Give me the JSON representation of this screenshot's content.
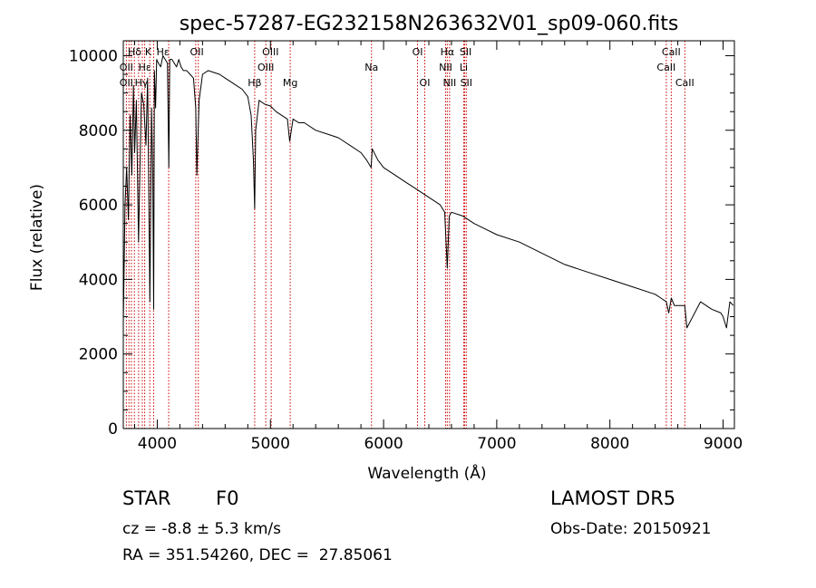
{
  "chart_data": {
    "type": "line",
    "title": "spec-57287-EG232158N263632V01_sp09-060.fits",
    "xlabel": "Wavelength (Å)",
    "ylabel": "Flux (relative)",
    "xlim": [
      3700,
      9100
    ],
    "ylim": [
      0,
      10400
    ],
    "xticks": [
      4000,
      5000,
      6000,
      7000,
      8000,
      9000
    ],
    "yticks": [
      0,
      2000,
      4000,
      6000,
      8000,
      10000
    ],
    "grid": false,
    "series": [
      {
        "x": [
          3700,
          3715,
          3730,
          3745,
          3760,
          3775,
          3790,
          3800,
          3815,
          3835,
          3860,
          3880,
          3900,
          3915,
          3935,
          3950,
          3960,
          3968,
          3975,
          3985,
          3995,
          4010,
          4030,
          4050,
          4070,
          4090,
          4102,
          4110,
          4130,
          4150,
          4170,
          4190,
          4210,
          4230,
          4260,
          4290,
          4320,
          4340,
          4350,
          4370,
          4400,
          4450,
          4500,
          4550,
          4600,
          4650,
          4700,
          4750,
          4800,
          4830,
          4850,
          4861,
          4870,
          4900,
          4950,
          5000,
          5050,
          5100,
          5150,
          5170,
          5200,
          5250,
          5300,
          5400,
          5500,
          5600,
          5700,
          5800,
          5850,
          5890,
          5900,
          5950,
          6000,
          6100,
          6200,
          6300,
          6400,
          6500,
          6540,
          6563,
          6580,
          6600,
          6700,
          6800,
          7000,
          7200,
          7400,
          7600,
          7800,
          8000,
          8200,
          8400,
          8450,
          8498,
          8520,
          8542,
          8570,
          8600,
          8662,
          8680,
          8800,
          8900,
          8980,
          9000,
          9030,
          9060,
          9090
        ],
        "y": [
          2800,
          6000,
          7000,
          5600,
          8400,
          6800,
          9200,
          7400,
          8800,
          5000,
          9000,
          8700,
          7600,
          9400,
          3400,
          8600,
          6800,
          3200,
          9600,
          8600,
          9900,
          9800,
          9700,
          10000,
          9900,
          9800,
          7000,
          9900,
          9900,
          9800,
          9700,
          9900,
          9700,
          9600,
          9600,
          9500,
          9400,
          8600,
          6800,
          8800,
          9500,
          9600,
          9550,
          9500,
          9400,
          9300,
          9200,
          9100,
          8900,
          8400,
          7200,
          5900,
          8000,
          8800,
          8700,
          8650,
          8500,
          8400,
          8300,
          7700,
          8300,
          8200,
          8200,
          8000,
          7900,
          7800,
          7600,
          7400,
          7200,
          7000,
          7500,
          7200,
          7000,
          6800,
          6600,
          6400,
          6200,
          6000,
          5800,
          4300,
          5700,
          5800,
          5700,
          5500,
          5200,
          5000,
          4700,
          4400,
          4200,
          4000,
          3800,
          3600,
          3500,
          3400,
          3100,
          3500,
          3300,
          3300,
          3300,
          2700,
          3400,
          3200,
          3100,
          3000,
          2700,
          3400,
          3300
        ]
      }
    ],
    "line_ids": {
      "row1": [
        {
          "label": "Hδ",
          "x": 3800
        },
        {
          "label": "K",
          "x": 3920
        },
        {
          "label": "Hε",
          "x": 4050
        },
        {
          "label": "OII",
          "x": 4350
        },
        {
          "label": "OIII",
          "x": 5000
        },
        {
          "label": "OI",
          "x": 6300
        },
        {
          "label": "Hα",
          "x": 6563
        },
        {
          "label": "SII",
          "x": 6725
        },
        {
          "label": "CaII",
          "x": 8542
        }
      ],
      "row2": [
        {
          "label": "OII",
          "x": 3727
        },
        {
          "label": "Hε",
          "x": 3890
        },
        {
          "label": "OIII",
          "x": 4959
        },
        {
          "label": "Na",
          "x": 5893
        },
        {
          "label": "NII",
          "x": 6548
        },
        {
          "label": "Li",
          "x": 6708
        },
        {
          "label": "CaII",
          "x": 8498
        }
      ],
      "row3": [
        {
          "label": "OII",
          "x": 3727
        },
        {
          "label": "Hγ",
          "x": 3860
        },
        {
          "label": "Hβ",
          "x": 4861
        },
        {
          "label": "Mg",
          "x": 5175
        },
        {
          "label": "OI",
          "x": 6364
        },
        {
          "label": "NII",
          "x": 6583
        },
        {
          "label": "SII",
          "x": 6731
        },
        {
          "label": "CaII",
          "x": 8662
        }
      ]
    },
    "line_positions": [
      3727,
      3750,
      3771,
      3798,
      3835,
      3868,
      3889,
      3934,
      3968,
      4101,
      4340,
      4363,
      4861,
      4959,
      5007,
      5175,
      5893,
      6300,
      6364,
      6548,
      6563,
      6583,
      6708,
      6717,
      6731,
      8498,
      8542,
      8662
    ]
  },
  "info": {
    "object_class": "STAR",
    "object_subclass": "F0",
    "survey": "LAMOST DR5",
    "redshift": "cz = -8.8 ± 5.3 km/s",
    "obs_date": "Obs-Date: 20150921",
    "coords": "RA = 351.54260, DEC =  27.85061"
  },
  "colors": {
    "spectrum": "#000000",
    "line_marker": "#cc0000",
    "axes": "#000000"
  }
}
